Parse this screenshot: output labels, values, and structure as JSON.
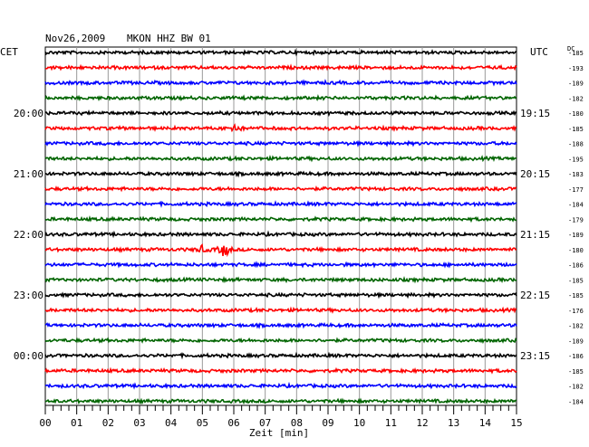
{
  "header": {
    "date": "Nov26,2009",
    "station": "MKON HHZ BW 01",
    "left_tz": "CET",
    "right_tz": "UTC",
    "dc_label": "DC"
  },
  "chart_data": {
    "type": "line",
    "title": "Nov26,2009  MKON HHZ BW 01",
    "xlabel": "Zeit [min]",
    "x_ticks": [
      "00",
      "01",
      "02",
      "03",
      "04",
      "05",
      "06",
      "07",
      "08",
      "09",
      "10",
      "11",
      "12",
      "13",
      "14",
      "15"
    ],
    "xlim": [
      0,
      15
    ],
    "minor_tick_step_min": 0.25,
    "grid": true,
    "trace_colors": [
      "#000000",
      "#ff0000",
      "#0000ff",
      "#006400"
    ],
    "left_time_labels": [
      {
        "row": 4,
        "text": "20:00"
      },
      {
        "row": 8,
        "text": "21:00"
      },
      {
        "row": 12,
        "text": "22:00"
      },
      {
        "row": 16,
        "text": "23:00"
      },
      {
        "row": 20,
        "text": "00:00"
      }
    ],
    "right_time_labels": [
      {
        "row": 4,
        "text": "19:15"
      },
      {
        "row": 8,
        "text": "20:15"
      },
      {
        "row": 12,
        "text": "21:15"
      },
      {
        "row": 16,
        "text": "22:15"
      },
      {
        "row": 20,
        "text": "23:15"
      }
    ],
    "dc_offsets": [
      -185,
      -193,
      -189,
      -182,
      -180,
      -185,
      -188,
      -195,
      -183,
      -177,
      -184,
      -179,
      -189,
      -180,
      -186,
      -185,
      -185,
      -176,
      -182,
      -189,
      -186,
      -185,
      -182,
      -184
    ],
    "events": [
      {
        "row": 5,
        "minute": 6.0,
        "amplitude": 0.55
      },
      {
        "row": 13,
        "minute": 5.7,
        "amplitude": 0.9
      },
      {
        "row": 13,
        "minute": 5.0,
        "amplitude": 0.4
      }
    ]
  }
}
